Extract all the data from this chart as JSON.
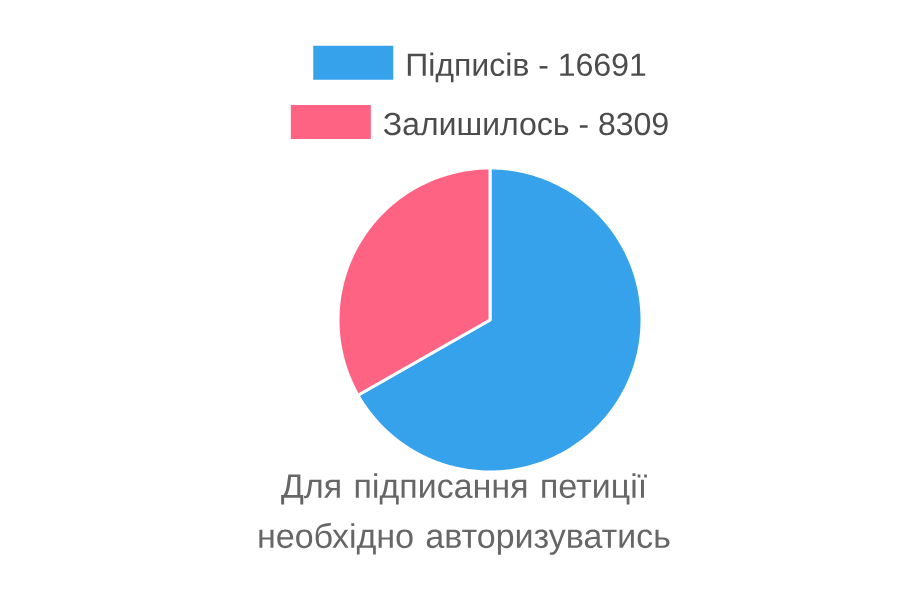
{
  "chart_data": {
    "type": "pie",
    "categories": [
      "Підписів -",
      "Залишилось -"
    ],
    "values": [
      16691,
      8309
    ],
    "value_labels": [
      "16691",
      "8309"
    ],
    "colors": [
      "#36a2eb",
      "#ff6384"
    ],
    "legend": "top",
    "annotations": [
      "Для підписання петиції необхідно авторизуватись"
    ]
  }
}
